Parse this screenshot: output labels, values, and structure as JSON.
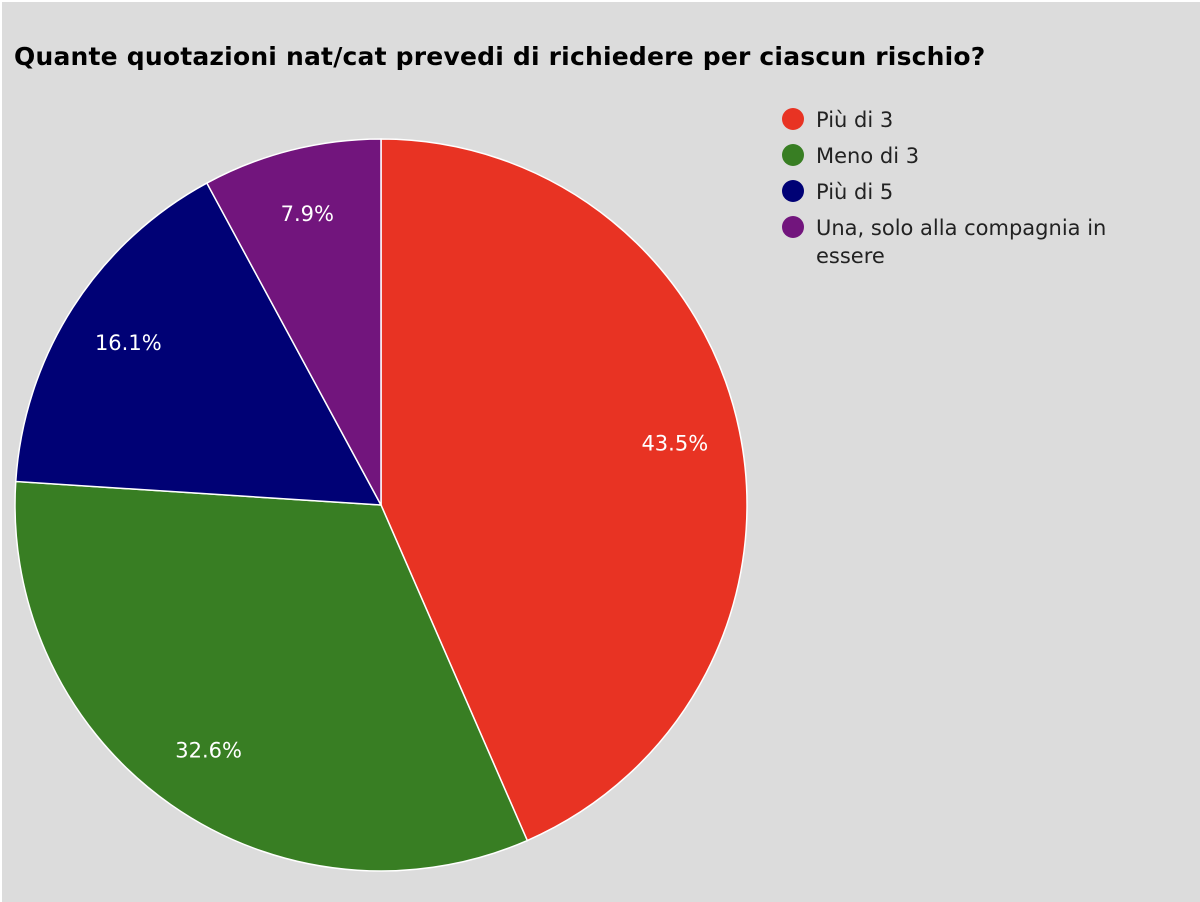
{
  "chart_data": {
    "type": "pie",
    "title": "Quante quotazioni nat/cat prevedi di richiedere per ciascun rischio?",
    "legend_position": "top-right",
    "slices": [
      {
        "label": "Più di 3",
        "value": 43.5,
        "value_label": "43.5%",
        "color": "#e83323"
      },
      {
        "label": "Meno di 3",
        "value": 32.6,
        "value_label": "32.6%",
        "color": "#387e23"
      },
      {
        "label": "Più di 5",
        "value": 16.1,
        "value_label": "16.1%",
        "color": "#000175"
      },
      {
        "label": "Una, solo alla compagnia in essere",
        "value": 7.9,
        "value_label": "7.9%",
        "color": "#72157d"
      }
    ]
  }
}
